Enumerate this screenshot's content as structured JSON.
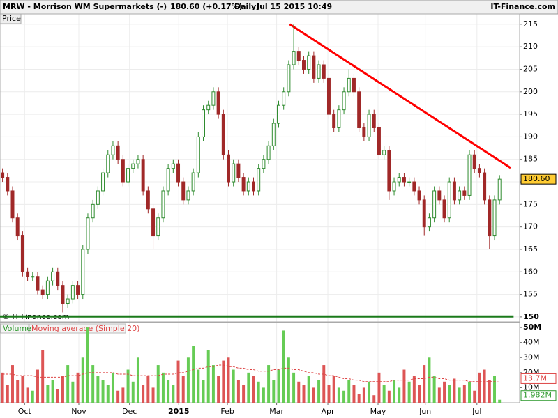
{
  "chart_data": {
    "type": "candlestick",
    "header": {
      "symbol": "MRW - Morrison WM Supermarkets (-)",
      "quote": "180.60 (+0.17%)",
      "period": "Daily",
      "timestamp": "Jul 15 2015 10:49",
      "brand": "IT-Finance.com"
    },
    "price_label": "Price",
    "copyright": "© IT-Finance.com",
    "xlim": [
      -0.5,
      103
    ],
    "xticks": [
      {
        "value": 4.4,
        "label": "Oct"
      },
      {
        "value": 15.2,
        "label": "Nov"
      },
      {
        "value": 25.3,
        "label": "Dec"
      },
      {
        "value": 35.1,
        "label": "2015"
      },
      {
        "value": 44.8,
        "label": "Feb"
      },
      {
        "value": 54.6,
        "label": "Mar"
      },
      {
        "value": 64.8,
        "label": "Apr"
      },
      {
        "value": 74.8,
        "label": "May"
      },
      {
        "value": 84.2,
        "label": "Jun"
      },
      {
        "value": 94.5,
        "label": "Jul"
      }
    ],
    "ylim": [
      148.9,
      217.3
    ],
    "yticks": [
      150,
      155,
      160,
      165,
      170,
      175,
      180,
      185,
      190,
      195,
      200,
      205,
      210,
      215
    ],
    "grid": true,
    "up_color": "#2e8b2e",
    "down_color": "#a02828",
    "open": [
      182,
      181,
      178,
      172,
      168,
      160,
      159,
      159,
      156,
      155,
      158,
      160,
      157,
      153,
      154,
      157,
      155,
      165,
      172,
      175,
      178,
      182,
      186,
      188,
      185,
      180,
      183,
      184,
      185,
      178,
      174,
      168,
      172,
      178,
      183,
      184,
      180,
      176,
      178,
      182,
      190,
      196,
      197,
      200,
      195,
      186,
      180,
      184,
      181,
      178,
      180,
      178,
      183,
      185,
      188,
      193,
      197,
      200,
      206,
      209,
      207,
      205,
      208,
      203,
      206,
      203,
      195,
      192,
      196,
      200,
      203,
      200,
      192,
      190,
      195,
      192,
      186,
      187,
      178,
      180,
      181,
      180,
      180,
      178,
      176,
      170,
      172,
      178,
      176,
      172,
      180,
      176,
      178,
      177,
      186,
      183,
      182,
      176,
      168,
      176
    ],
    "high": [
      183,
      182,
      179,
      173,
      169,
      161,
      160,
      160,
      157,
      159,
      161,
      161,
      158,
      155,
      158,
      158,
      166,
      173,
      176,
      179,
      183,
      187,
      189,
      189,
      186,
      184,
      185,
      186,
      186,
      179,
      175,
      173,
      179,
      184,
      185,
      185,
      181,
      179,
      183,
      191,
      197,
      198,
      201,
      201,
      196,
      187,
      185,
      185,
      182,
      181,
      181,
      184,
      186,
      189,
      194,
      198,
      201,
      207,
      215,
      210,
      208,
      209,
      209,
      207,
      207,
      204,
      196,
      197,
      201,
      205,
      204,
      201,
      193,
      196,
      196,
      193,
      188,
      188,
      181,
      182,
      182,
      181,
      181,
      179,
      177,
      173,
      179,
      179,
      177,
      181,
      181,
      179,
      179,
      187,
      187,
      184,
      183,
      177,
      177,
      181.5
    ],
    "low": [
      180,
      177,
      171,
      167,
      159,
      158,
      158,
      155,
      154,
      154,
      157,
      156,
      151,
      152,
      153,
      154,
      154,
      164,
      171,
      174,
      177,
      181,
      185,
      184,
      179,
      179,
      182,
      183,
      177,
      173,
      165,
      167,
      171,
      177,
      182,
      179,
      175,
      175,
      177,
      181,
      189,
      195,
      196,
      194,
      185,
      179,
      179,
      180,
      177,
      177,
      177,
      177,
      182,
      184,
      187,
      192,
      196,
      199,
      205,
      206,
      204,
      204,
      202,
      202,
      202,
      194,
      191,
      191,
      195,
      199,
      199,
      191,
      189,
      189,
      191,
      185,
      185,
      176,
      177,
      179,
      179,
      179,
      177,
      175,
      168,
      169,
      171,
      175,
      171,
      171,
      175,
      175,
      176,
      176,
      182,
      181,
      175,
      165,
      167,
      175
    ],
    "close": [
      181,
      178,
      172,
      168,
      160,
      159,
      159,
      156,
      155,
      158,
      160,
      157,
      153,
      154,
      157,
      155,
      165,
      172,
      175,
      178,
      182,
      186,
      188,
      185,
      180,
      183,
      184,
      185,
      178,
      174,
      168,
      172,
      178,
      183,
      184,
      180,
      176,
      178,
      182,
      190,
      196,
      197,
      200,
      195,
      186,
      180,
      184,
      181,
      178,
      180,
      178,
      183,
      185,
      188,
      193,
      197,
      200,
      206,
      209,
      207,
      205,
      208,
      203,
      206,
      203,
      195,
      192,
      196,
      200,
      203,
      200,
      192,
      190,
      195,
      192,
      186,
      187,
      178,
      180,
      181,
      180,
      180,
      178,
      176,
      170,
      172,
      178,
      176,
      172,
      180,
      176,
      178,
      177,
      186,
      183,
      182,
      176,
      168,
      176,
      180.6
    ],
    "last_price": {
      "value": 180.6,
      "label": "180.60"
    },
    "trendlines": [
      {
        "color": "#ff0000",
        "x": [
          57.2,
          101.2
        ],
        "y": [
          215,
          183.1
        ]
      },
      {
        "color": "#1a7a1a",
        "x": [
          -0.5,
          101.8
        ],
        "y": [
          150.1,
          150.1
        ]
      }
    ],
    "volume": {
      "legend": "Volume",
      "ma_legend": "Moving average (Simple 20)",
      "up_color": "#66cc55",
      "down_color": "#dd5555",
      "ma_color": "#dd4444",
      "ylim": [
        0,
        53.3
      ],
      "yticks": [
        {
          "value": 10,
          "label": "10M"
        },
        {
          "value": 20,
          "label": "20M"
        },
        {
          "value": 30,
          "label": "30M"
        },
        {
          "value": 40,
          "label": "40M"
        },
        {
          "value": 50,
          "label": "50M"
        }
      ],
      "values": [
        20,
        12,
        25,
        15,
        18,
        10,
        8,
        22,
        35,
        12,
        15,
        9,
        18,
        25,
        14,
        20,
        30,
        50,
        25,
        18,
        15,
        12,
        20,
        8,
        10,
        22,
        14,
        30,
        12,
        18,
        10,
        25,
        20,
        15,
        12,
        28,
        18,
        30,
        38,
        22,
        15,
        35,
        25,
        18,
        28,
        30,
        22,
        15,
        12,
        20,
        18,
        14,
        10,
        25,
        15,
        22,
        48,
        30,
        20,
        14,
        12,
        18,
        10,
        15,
        25,
        12,
        18,
        10,
        8,
        15,
        12,
        6,
        10,
        14,
        5,
        20,
        12,
        8,
        15,
        10,
        22,
        14,
        18,
        12,
        25,
        30,
        18,
        10,
        14,
        12,
        16,
        10,
        12,
        14,
        8,
        20,
        22,
        15,
        18,
        1.982
      ],
      "ma": [
        19,
        19,
        19,
        18,
        18,
        18,
        18,
        17,
        17,
        17,
        17,
        17,
        17,
        18,
        18,
        18,
        19,
        20,
        20,
        20,
        20,
        20,
        20,
        19,
        19,
        19,
        18,
        18,
        18,
        18,
        18,
        18,
        19,
        19,
        19,
        20,
        20,
        21,
        22,
        23,
        23,
        24,
        24,
        25,
        25,
        24,
        24,
        23,
        23,
        22,
        22,
        21,
        21,
        21,
        22,
        22,
        23,
        23,
        22,
        22,
        21,
        20,
        20,
        19,
        19,
        18,
        18,
        17,
        16,
        16,
        15,
        15,
        14,
        14,
        14,
        14,
        14,
        14,
        15,
        15,
        15,
        15,
        16,
        16,
        16,
        17,
        17,
        16,
        16,
        15,
        15,
        15,
        15,
        14,
        14,
        14,
        14,
        14,
        14,
        13.7
      ],
      "last_ma": {
        "value": 13.7,
        "label": "13.7M"
      },
      "last_volume": {
        "value": 1.982,
        "label": "1.982M"
      }
    }
  }
}
